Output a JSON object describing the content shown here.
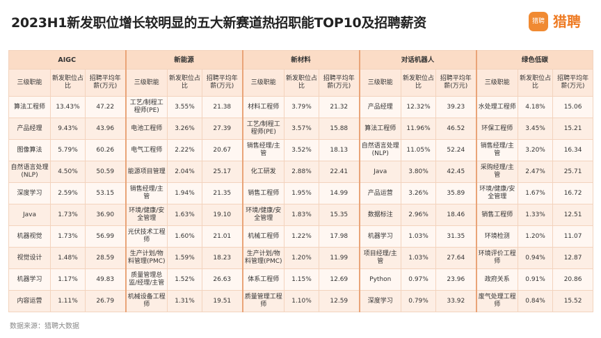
{
  "header": {
    "title": "2023H1新发职位增长较明显的五大新赛道热招职能TOP10及招聘薪资",
    "logo_text": "猎聘",
    "brand": "猎聘"
  },
  "table": {
    "groups": [
      {
        "name": "AIGC",
        "columns": [
          "三级职能",
          "新发职位占比",
          "招聘平均年薪(万元)"
        ],
        "rows": [
          [
            "算法工程师",
            "13.43%",
            "47.22"
          ],
          [
            "产品经理",
            "9.43%",
            "43.96"
          ],
          [
            "图像算法",
            "5.79%",
            "60.26"
          ],
          [
            "自然语言处理(NLP)",
            "4.50%",
            "50.59"
          ],
          [
            "深度学习",
            "2.59%",
            "53.15"
          ],
          [
            "Java",
            "1.73%",
            "36.90"
          ],
          [
            "机器视觉",
            "1.73%",
            "56.99"
          ],
          [
            "视觉设计",
            "1.48%",
            "28.59"
          ],
          [
            "机器学习",
            "1.17%",
            "49.83"
          ],
          [
            "内容运营",
            "1.11%",
            "26.79"
          ]
        ]
      },
      {
        "name": "新能源",
        "columns": [
          "三级职能",
          "新发职位占比",
          "招聘平均年薪(万元)"
        ],
        "rows": [
          [
            "工艺/制程工程师(PE)",
            "3.55%",
            "21.38"
          ],
          [
            "电池工程师",
            "3.26%",
            "27.39"
          ],
          [
            "电气工程师",
            "2.22%",
            "20.67"
          ],
          [
            "能源项目管理",
            "2.04%",
            "25.17"
          ],
          [
            "销售经理/主管",
            "1.94%",
            "21.35"
          ],
          [
            "环境/健康/安全管理",
            "1.63%",
            "19.10"
          ],
          [
            "光伏技术工程师",
            "1.60%",
            "21.01"
          ],
          [
            "生产计划/物料管理(PMC)",
            "1.59%",
            "18.23"
          ],
          [
            "质量管理总监/经理/主管",
            "1.52%",
            "26.63"
          ],
          [
            "机械设备工程师",
            "1.31%",
            "19.51"
          ]
        ]
      },
      {
        "name": "新材料",
        "columns": [
          "三级职能",
          "新发职位占比",
          "招聘平均年薪(万元)"
        ],
        "rows": [
          [
            "材料工程师",
            "3.79%",
            "21.32"
          ],
          [
            "工艺/制程工程师(PE)",
            "3.57%",
            "15.88"
          ],
          [
            "销售经理/主管",
            "3.52%",
            "18.13"
          ],
          [
            "化工研发",
            "2.88%",
            "22.41"
          ],
          [
            "销售工程师",
            "1.95%",
            "14.99"
          ],
          [
            "环境/健康/安全管理",
            "1.83%",
            "15.35"
          ],
          [
            "机械工程师",
            "1.22%",
            "17.98"
          ],
          [
            "生产计划/物料管理(PMC)",
            "1.20%",
            "11.99"
          ],
          [
            "体系工程师",
            "1.15%",
            "12.69"
          ],
          [
            "质量管理工程师",
            "1.10%",
            "12.59"
          ]
        ]
      },
      {
        "name": "对话机器人",
        "columns": [
          "三级职能",
          "新发职位占比",
          "招聘平均年薪(万元)"
        ],
        "rows": [
          [
            "产品经理",
            "12.32%",
            "39.23"
          ],
          [
            "算法工程师",
            "11.96%",
            "46.52"
          ],
          [
            "自然语言处理(NLP)",
            "11.05%",
            "52.24"
          ],
          [
            "Java",
            "3.80%",
            "42.45"
          ],
          [
            "产品运营",
            "3.26%",
            "35.89"
          ],
          [
            "数据标注",
            "2.96%",
            "18.46"
          ],
          [
            "机器学习",
            "1.03%",
            "31.35"
          ],
          [
            "项目经理/主管",
            "1.03%",
            "27.64"
          ],
          [
            "Python",
            "0.97%",
            "23.96"
          ],
          [
            "深度学习",
            "0.79%",
            "33.92"
          ]
        ]
      },
      {
        "name": "绿色低碳",
        "columns": [
          "三级职能",
          "新发职位占比",
          "招聘平均年薪(万元)"
        ],
        "rows": [
          [
            "水处理工程师",
            "4.18%",
            "15.06"
          ],
          [
            "环保工程师",
            "3.45%",
            "15.21"
          ],
          [
            "销售经理/主管",
            "3.20%",
            "16.34"
          ],
          [
            "采购经理/主管",
            "2.47%",
            "25.71"
          ],
          [
            "环境/健康/安全管理",
            "1.67%",
            "16.72"
          ],
          [
            "销售工程师",
            "1.33%",
            "12.51"
          ],
          [
            "环境检测",
            "1.20%",
            "11.07"
          ],
          [
            "环境评价工程师",
            "0.94%",
            "12.87"
          ],
          [
            "政府关系",
            "0.91%",
            "20.86"
          ],
          [
            "废气处理工程师",
            "0.84%",
            "15.52"
          ]
        ]
      }
    ]
  },
  "source": "数据来源：猎聘大数据"
}
